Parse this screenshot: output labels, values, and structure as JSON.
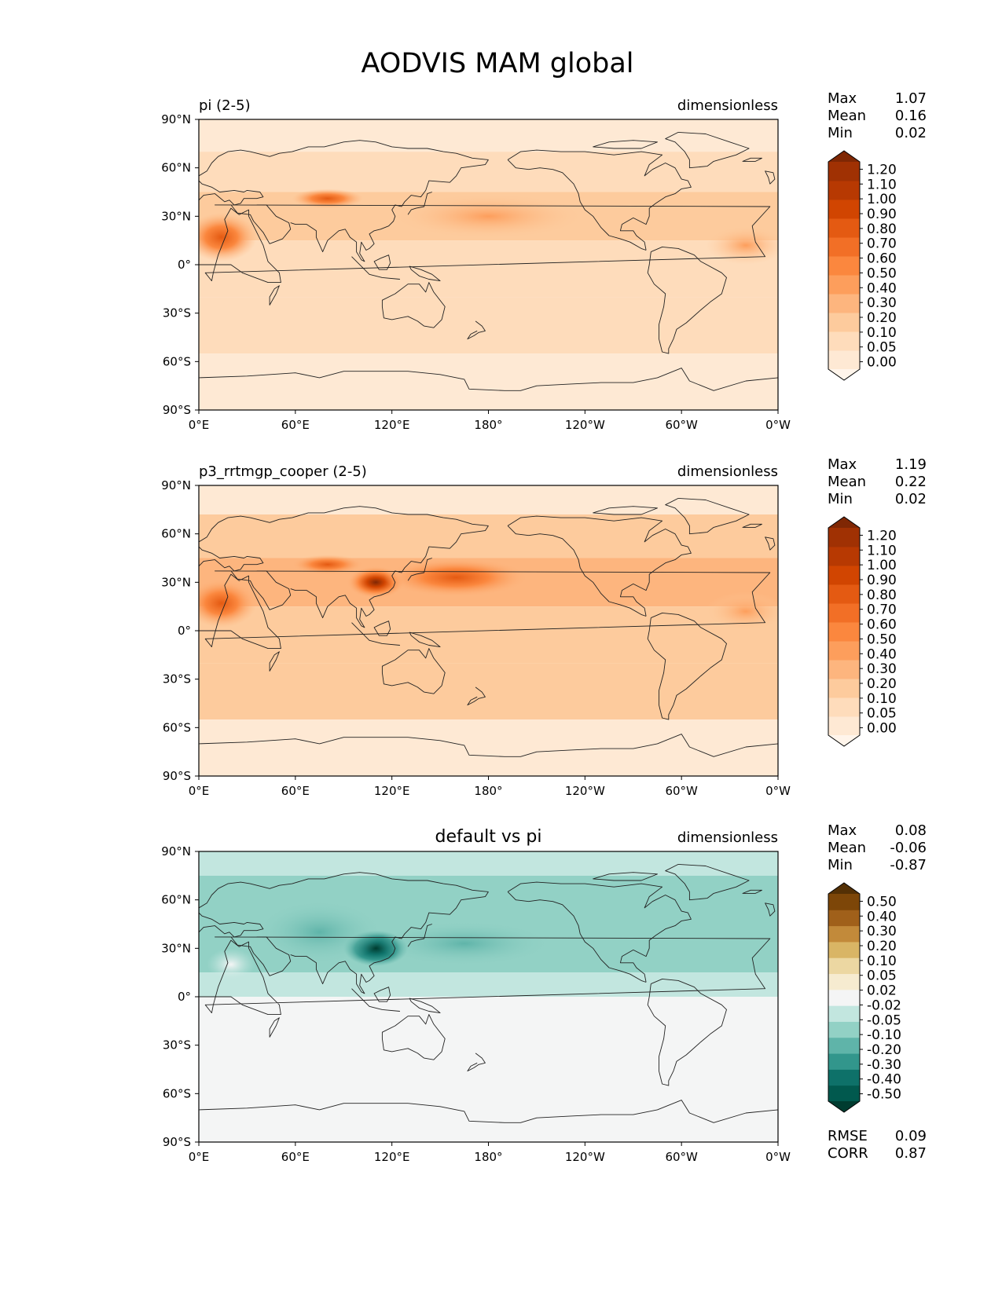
{
  "figure": {
    "title": "AODVIS MAM global"
  },
  "panels": [
    {
      "id": "test",
      "left_title": "pi (2-5)",
      "center_title": "",
      "units": "dimensionless",
      "stats": [
        {
          "label": "Max",
          "value": "1.07"
        },
        {
          "label": "Mean",
          "value": "0.16"
        },
        {
          "label": "Min",
          "value": "0.02"
        }
      ],
      "colorbar": {
        "colors": [
          "#fff5eb",
          "#fee9d4",
          "#fedcbb",
          "#fdcb9d",
          "#fdb57e",
          "#fd9e5c",
          "#fb873e",
          "#f26f26",
          "#e45a12",
          "#d14501",
          "#b73902",
          "#a03103",
          "#7f2704"
        ],
        "ticks": [
          "0.00",
          "0.05",
          "0.10",
          "0.20",
          "0.30",
          "0.40",
          "0.50",
          "0.60",
          "0.70",
          "0.80",
          "0.90",
          "1.00",
          "1.10",
          "1.20"
        ]
      },
      "extra_stats": []
    },
    {
      "id": "ref",
      "left_title": "p3_rrtmgp_cooper (2-5)",
      "center_title": "",
      "units": "dimensionless",
      "stats": [
        {
          "label": "Max",
          "value": "1.19"
        },
        {
          "label": "Mean",
          "value": "0.22"
        },
        {
          "label": "Min",
          "value": "0.02"
        }
      ],
      "colorbar": {
        "colors": [
          "#fff5eb",
          "#fee9d4",
          "#fedcbb",
          "#fdcb9d",
          "#fdb57e",
          "#fd9e5c",
          "#fb873e",
          "#f26f26",
          "#e45a12",
          "#d14501",
          "#b73902",
          "#a03103",
          "#7f2704"
        ],
        "ticks": [
          "0.00",
          "0.05",
          "0.10",
          "0.20",
          "0.30",
          "0.40",
          "0.50",
          "0.60",
          "0.70",
          "0.80",
          "0.90",
          "1.00",
          "1.10",
          "1.20"
        ]
      },
      "extra_stats": []
    },
    {
      "id": "diff",
      "left_title": "",
      "center_title": "default vs pi",
      "units": "dimensionless",
      "stats": [
        {
          "label": "Max",
          "value": "0.08"
        },
        {
          "label": "Mean",
          "value": "-0.06"
        },
        {
          "label": "Min",
          "value": "-0.87"
        }
      ],
      "colorbar": {
        "colors": [
          "#003c30",
          "#01594e",
          "#0e7169",
          "#32968c",
          "#5fb4a9",
          "#92d1c5",
          "#c2e6df",
          "#f4f5f5",
          "#f6ebd0",
          "#ecd7a2",
          "#d9b565",
          "#c28a3a",
          "#a0601a",
          "#7d4608",
          "#543005"
        ],
        "ticks": [
          "-0.50",
          "-0.40",
          "-0.30",
          "-0.20",
          "-0.10",
          "-0.05",
          "-0.02",
          "0.02",
          "0.05",
          "0.10",
          "0.20",
          "0.30",
          "0.40",
          "0.50"
        ]
      },
      "extra_stats": [
        {
          "label": "RMSE",
          "value": "0.09"
        },
        {
          "label": "CORR",
          "value": "0.87"
        }
      ]
    }
  ],
  "axes": {
    "lat_ticks": [
      "90°N",
      "60°N",
      "30°N",
      "0°",
      "30°S",
      "60°S",
      "90°S"
    ],
    "lon_ticks": [
      "0°E",
      "60°E",
      "120°E",
      "180°",
      "120°W",
      "60°W",
      "0°W"
    ]
  }
}
